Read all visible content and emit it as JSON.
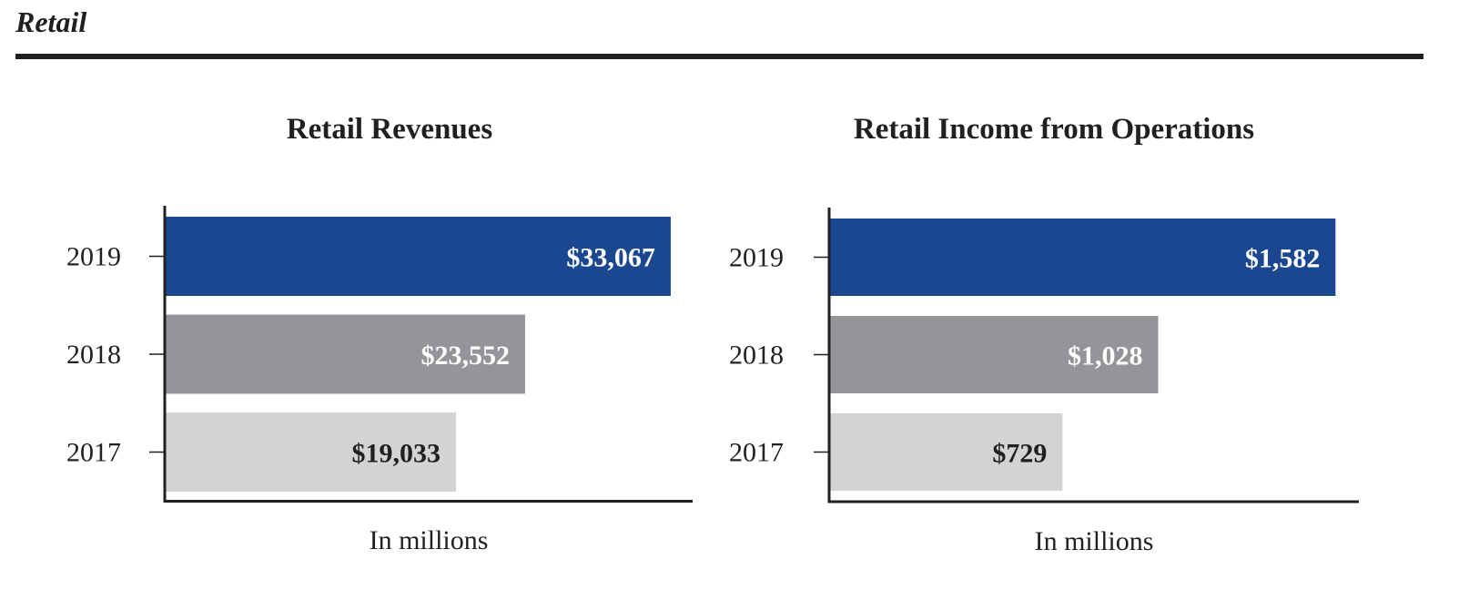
{
  "section": {
    "title": "Retail"
  },
  "chart_data": [
    {
      "type": "bar",
      "orientation": "horizontal",
      "title": "Retail Revenues",
      "xlabel": "In millions",
      "ylabel": "",
      "categories": [
        "2019",
        "2018",
        "2017"
      ],
      "values": [
        33067,
        23552,
        19033
      ],
      "value_labels": [
        "$33,067",
        "$23,552",
        "$19,033"
      ],
      "colors": [
        "#1a4790",
        "#939598",
        "#d1d3d4"
      ],
      "label_colors": [
        "#ffffff",
        "#ffffff",
        "#231f20"
      ],
      "xlim": [
        0,
        34500
      ],
      "grid": false,
      "legend": "none"
    },
    {
      "type": "bar",
      "orientation": "horizontal",
      "title": "Retail Income from Operations",
      "xlabel": "In millions",
      "ylabel": "",
      "categories": [
        "2019",
        "2018",
        "2017"
      ],
      "values": [
        1582,
        1028,
        729
      ],
      "value_labels": [
        "$1,582",
        "$1,028",
        "$729"
      ],
      "colors": [
        "#1a4790",
        "#939598",
        "#d1d3d4"
      ],
      "label_colors": [
        "#ffffff",
        "#ffffff",
        "#231f20"
      ],
      "xlim": [
        0,
        1655
      ],
      "grid": false,
      "legend": "none"
    }
  ]
}
